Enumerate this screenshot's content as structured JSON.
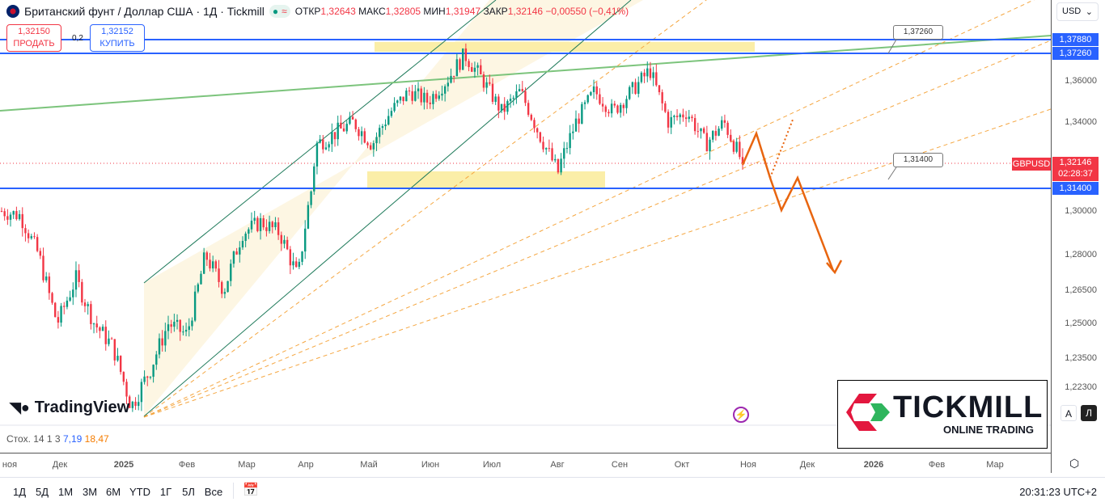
{
  "header": {
    "title": "Британский фунт / Доллар США · 1Д · Tickmill",
    "ohlc": [
      {
        "l": "ОТКР",
        "v": "1,32643"
      },
      {
        "l": "МАКС",
        "v": "1,32805"
      },
      {
        "l": "МИН",
        "v": "1,31947"
      },
      {
        "l": "ЗАКР",
        "v": "1,32146"
      }
    ],
    "change": "−0,00550 (−0,41%)"
  },
  "trade": {
    "sell_price": "1,32150",
    "sell_label": "ПРОДАТЬ",
    "spread": "0,2",
    "buy_price": "1,32152",
    "buy_label": "КУПИТЬ"
  },
  "currency": "USD",
  "symbol_label": "GBPUSD",
  "countdown": "02:28:37",
  "callouts": [
    "1,37260",
    "1,31400"
  ],
  "branding": {
    "tradingview": "TradingView",
    "tickmill": "TICKMILL",
    "tickmill_sub": "ONLINE TRADING"
  },
  "indicator": {
    "name": "Стох. 14 1 3",
    "k": "7,19",
    "d": "18,47"
  },
  "time_labels": [
    "ноя",
    "Дек",
    "2025",
    "Фев",
    "Мар",
    "Апр",
    "Май",
    "Июн",
    "Июл",
    "Авг",
    "Сен",
    "Окт",
    "Ноя",
    "Дек",
    "2026",
    "Фев",
    "Мар"
  ],
  "ranges": [
    "1Д",
    "5Д",
    "1М",
    "3М",
    "6М",
    "YTD",
    "1Г",
    "5Л",
    "Все"
  ],
  "clock": "20:31:23 UTC+2",
  "scale_buttons": [
    "A",
    "Л"
  ],
  "chart_data": {
    "type": "candlestick",
    "ticks": [
      1.3788,
      1.3726,
      1.36,
      1.34,
      1.32146,
      1.314,
      1.3,
      1.28,
      1.265,
      1.25,
      1.235,
      1.223
    ],
    "tick_labels": [
      "1,37880",
      "1,37260",
      "1,36000",
      "1,34000",
      "1,32146",
      "1,31400",
      "1,30000",
      "1,28000",
      "1,26500",
      "1,25000",
      "1,23500",
      "1,22300"
    ],
    "horizontal_levels": [
      1.3788,
      1.3726,
      1.314
    ],
    "path_closes": [
      1.3,
      1.298,
      1.28,
      1.25,
      1.27,
      1.25,
      1.24,
      1.215,
      1.23,
      1.25,
      1.245,
      1.28,
      1.265,
      1.29,
      1.295,
      1.29,
      1.27,
      1.33,
      1.335,
      1.34,
      1.33,
      1.345,
      1.355,
      1.35,
      1.36,
      1.372,
      1.36,
      1.345,
      1.355,
      1.335,
      1.318,
      1.34,
      1.355,
      1.345,
      1.355,
      1.365,
      1.34,
      1.345,
      1.33,
      1.34,
      1.3215
    ],
    "colors": {
      "up": "#089981",
      "down": "#f23645",
      "level": "#2962ff",
      "projection": "#e8650f"
    }
  }
}
